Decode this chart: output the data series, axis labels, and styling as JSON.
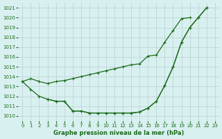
{
  "xlabel": "Graphe pression niveau de la mer (hPa)",
  "x": [
    0,
    1,
    2,
    3,
    4,
    5,
    6,
    7,
    8,
    9,
    10,
    11,
    12,
    13,
    14,
    15,
    16,
    17,
    18,
    19,
    20,
    21,
    22,
    23
  ],
  "line_a": [
    1013.5,
    null,
    null,
    null,
    null,
    null,
    null,
    null,
    null,
    null,
    null,
    null,
    null,
    null,
    null,
    null,
    null,
    null,
    null,
    1019.9,
    1020.0,
    null,
    null,
    null
  ],
  "line_b": [
    1013.5,
    1012.7,
    1012.0,
    1011.7,
    1011.5,
    1011.5,
    1010.5,
    1010.5,
    1010.3,
    1010.3,
    1010.3,
    1010.3,
    1010.3,
    1010.3,
    1010.4,
    1010.8,
    1011.5,
    1013.1,
    1015.0,
    1017.5,
    1019.0,
    1020.0,
    1021.0,
    null
  ],
  "line_c": [
    null,
    null,
    null,
    1011.7,
    1011.5,
    1011.5,
    1010.5,
    1010.5,
    1010.3,
    1010.3,
    1010.3,
    1010.3,
    1010.3,
    1010.3,
    1010.4,
    1010.8,
    1011.5,
    1013.1,
    1015.0,
    1017.5,
    1019.0,
    1020.0,
    1021.0,
    null
  ],
  "line_top": [
    1013.5,
    1013.8,
    1013.5,
    1013.3,
    1013.5,
    1013.6,
    1013.8,
    1014.0,
    1014.2,
    1014.4,
    1014.6,
    1014.8,
    1015.0,
    1015.2,
    1015.3,
    1016.1,
    1016.2,
    1017.5,
    1018.7,
    1019.9,
    1020.0,
    null,
    null,
    null
  ],
  "line_color": "#1a6b1a",
  "bg_color": "#d9f0f0",
  "grid_color": "#b8d0d0",
  "ylim": [
    1009.5,
    1021.5
  ],
  "yticks": [
    1010,
    1011,
    1012,
    1013,
    1014,
    1015,
    1016,
    1017,
    1018,
    1019,
    1020,
    1021
  ],
  "xticks": [
    0,
    1,
    2,
    3,
    4,
    5,
    6,
    7,
    8,
    9,
    10,
    11,
    12,
    13,
    14,
    15,
    16,
    17,
    18,
    19,
    20,
    21,
    22,
    23
  ],
  "marker": "+"
}
